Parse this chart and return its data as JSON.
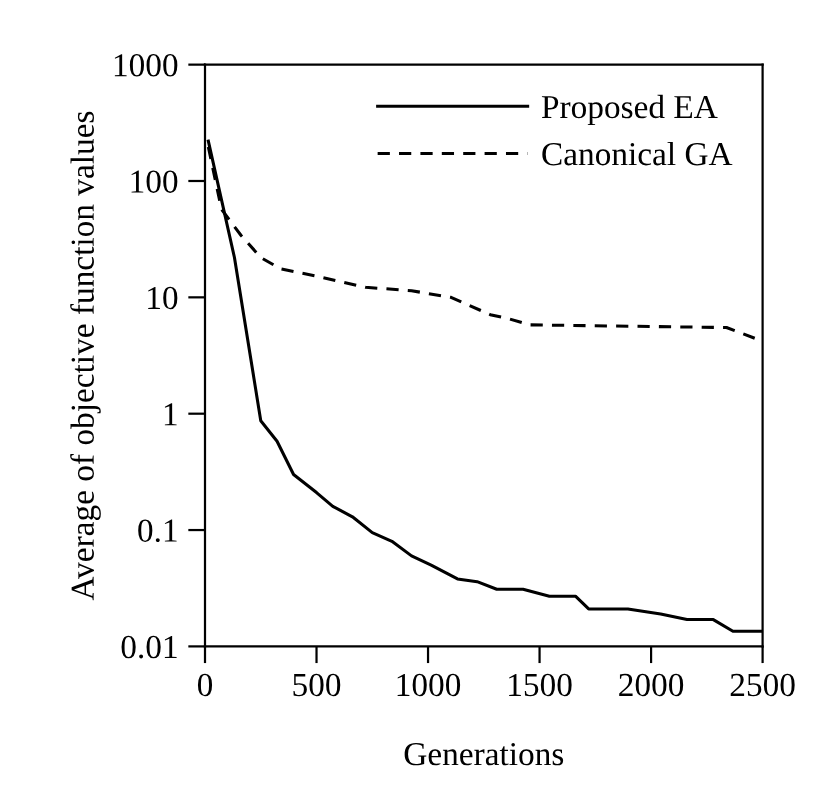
{
  "chart_data": {
    "type": "line",
    "xlabel": "Generations",
    "ylabel": "Average of objective function values",
    "log": "y",
    "xlim": [
      0,
      2500
    ],
    "ylim": [
      0.01,
      1000
    ],
    "xticks": [
      0,
      500,
      1000,
      1500,
      2000,
      2500
    ],
    "yticks": [
      {
        "value": 0.01,
        "label": "0.01"
      },
      {
        "value": 0.1,
        "label": "0.1"
      },
      1,
      10,
      100,
      1000
    ],
    "grid": false,
    "legend": "top right",
    "marker": "none",
    "series": [
      {
        "name": "Proposed EA",
        "color": "#000000",
        "line_style": "solid",
        "x": [
          15,
          132,
          250,
          323,
          397,
          500,
          573,
          661,
          750,
          838,
          926,
          1014,
          1132,
          1220,
          1308,
          1426,
          1544,
          1661,
          1720,
          1896,
          2043,
          2161,
          2279,
          2367,
          2500
        ],
        "values": [
          220,
          22,
          0.87,
          0.58,
          0.3,
          0.21,
          0.16,
          0.13,
          0.095,
          0.08,
          0.06,
          0.05,
          0.038,
          0.036,
          0.031,
          0.031,
          0.027,
          0.027,
          0.021,
          0.021,
          0.019,
          0.017,
          0.017,
          0.0135,
          0.0135
        ]
      },
      {
        "name": "Canonical GA",
        "color": "#000000",
        "line_style": "dashed",
        "x": [
          15,
          74,
          162,
          250,
          338,
          515,
          720,
          926,
          1103,
          1279,
          1367,
          1455,
          2338,
          2500
        ],
        "values": [
          196,
          57,
          34,
          22,
          17.6,
          15,
          12.2,
          11.4,
          10,
          7.1,
          6.5,
          5.8,
          5.5,
          4.2
        ]
      }
    ]
  }
}
